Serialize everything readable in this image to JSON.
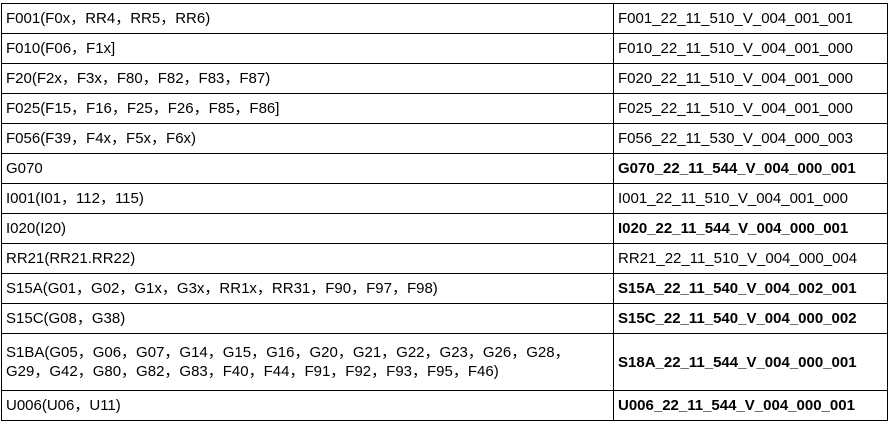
{
  "rows": [
    {
      "name": "F001(F0x，RR4，RR5，RR6)",
      "code": "F001_22_11_510_V_004_001_001",
      "bold": false
    },
    {
      "name": "F010(F06，F1x]",
      "code": "F010_22_11_510_V_004_001_000",
      "bold": false
    },
    {
      "name": "F20(F2x，F3x，F80，F82，F83，F87)",
      "code": "F020_22_11_510_V_004_001_000",
      "bold": false
    },
    {
      "name": "F025(F15，F16，F25，F26，F85，F86]",
      "code": "F025_22_11_510_V_004_001_000",
      "bold": false
    },
    {
      "name": "F056(F39，F4x，F5x，F6x)",
      "code": "F056_22_11_530_V_004_000_003",
      "bold": false
    },
    {
      "name": "G070",
      "code": "G070_22_11_544_V_004_000_001",
      "bold": true
    },
    {
      "name": "I001(I01，112，115)",
      "code": "I001_22_11_510_V_004_001_000",
      "bold": false
    },
    {
      "name": "I020(I20)",
      "code": "I020_22_11_544_V_004_000_001",
      "bold": true
    },
    {
      "name": "RR21(RR21.RR22)",
      "code": "RR21_22_11_510_V_004_000_004",
      "bold": false
    },
    {
      "name": "S15A(G01，G02，G1x，G3x，RR1x，RR31，F90，F97，F98)",
      "code": "S15A_22_11_540_V_004_002_001",
      "bold": true
    },
    {
      "name": "S15C(G08，G38)",
      "code": "S15C_22_11_540_V_004_000_002",
      "bold": true
    },
    {
      "name": "S1BA(G05，G06，G07，G14，G15，G16，G20，G21，G22，G23，G26，G28，G29，G42，G80，G82，G83，F40，F44，F91，F92，F93，F95，F46)",
      "code": "S18A_22_11_544_V_004_000_001",
      "bold": true
    },
    {
      "name": "U006(U06，U11)",
      "code": "U006_22_11_544_V_004_000_001",
      "bold": true
    }
  ]
}
